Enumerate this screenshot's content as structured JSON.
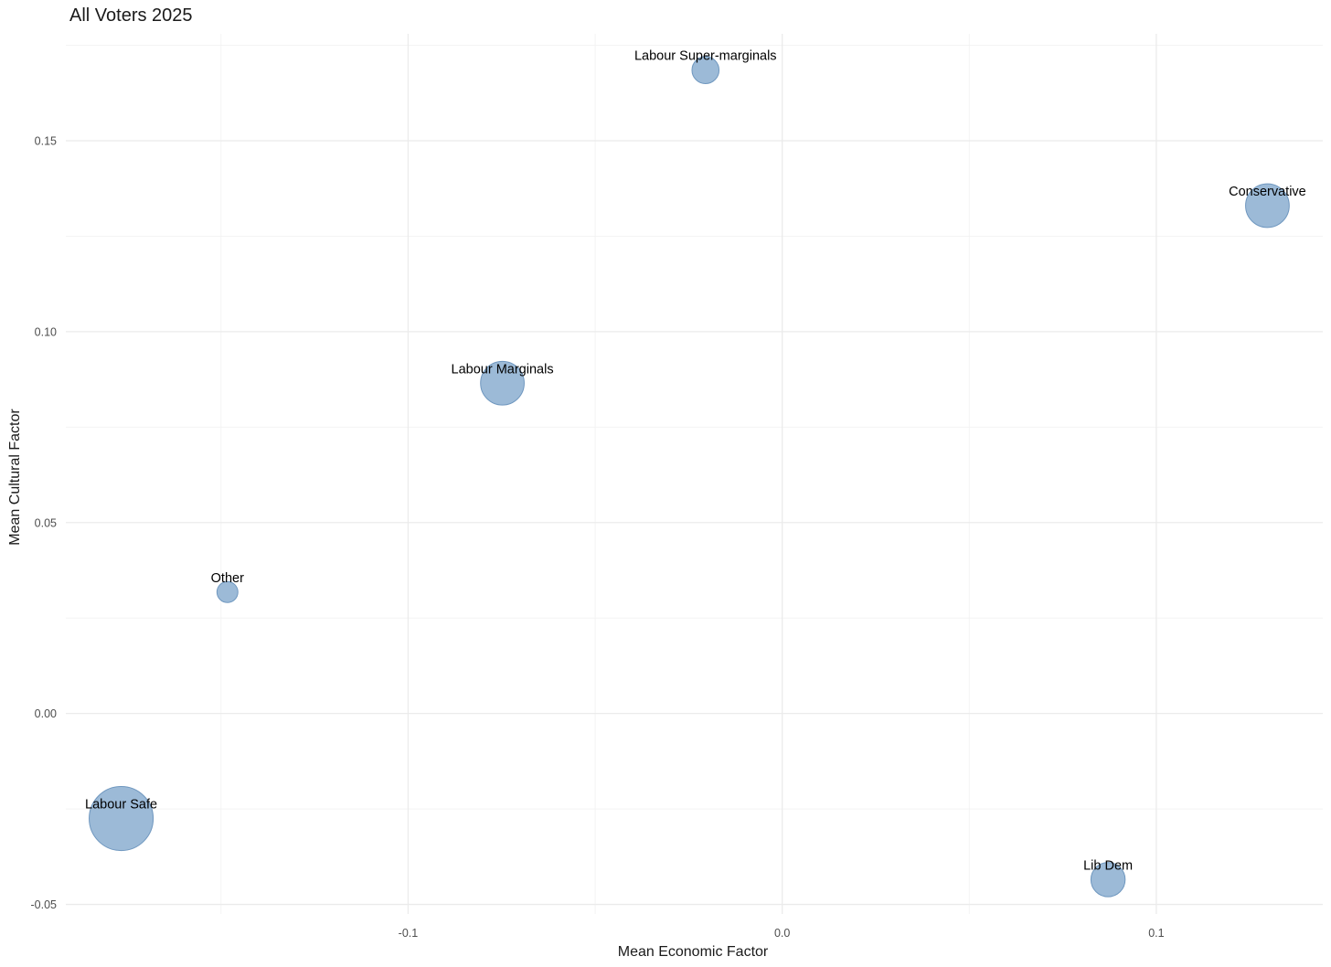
{
  "chart_data": {
    "type": "scatter",
    "title": "All Voters 2025",
    "xlabel": "Mean Economic Factor",
    "ylabel": "Mean Cultural Factor",
    "xlim": [
      -0.1915,
      0.1445
    ],
    "ylim": [
      -0.0525,
      0.178
    ],
    "x_ticks": [
      {
        "value": -0.1,
        "label": "-0.1"
      },
      {
        "value": 0.0,
        "label": "0.0"
      },
      {
        "value": 0.1,
        "label": "0.1"
      }
    ],
    "x_minor_ticks": [
      -0.15,
      -0.05,
      0.05
    ],
    "y_ticks": [
      {
        "value": -0.05,
        "label": "-0.05"
      },
      {
        "value": 0.0,
        "label": "0.00"
      },
      {
        "value": 0.05,
        "label": "0.05"
      },
      {
        "value": 0.1,
        "label": "0.10"
      },
      {
        "value": 0.15,
        "label": "0.15"
      }
    ],
    "y_minor_ticks": [
      -0.025,
      0.025,
      0.075,
      0.125,
      0.175
    ],
    "grid": true,
    "marker_color": "#8eb0d2",
    "marker_stroke": "#6f97bf",
    "points": [
      {
        "label": "Labour Super-marginals",
        "x": -0.0205,
        "y": 0.1685,
        "size": 1.0
      },
      {
        "label": "Conservative",
        "x": 0.1297,
        "y": 0.133,
        "size": 2.6
      },
      {
        "label": "Labour Marginals",
        "x": -0.0748,
        "y": 0.0865,
        "size": 2.6
      },
      {
        "label": "Other",
        "x": -0.1483,
        "y": 0.0318,
        "size": 0.6
      },
      {
        "label": "Labour Safe",
        "x": -0.1767,
        "y": -0.0275,
        "size": 5.6
      },
      {
        "label": "Lib Dem",
        "x": 0.0871,
        "y": -0.0435,
        "size": 1.6
      }
    ]
  }
}
